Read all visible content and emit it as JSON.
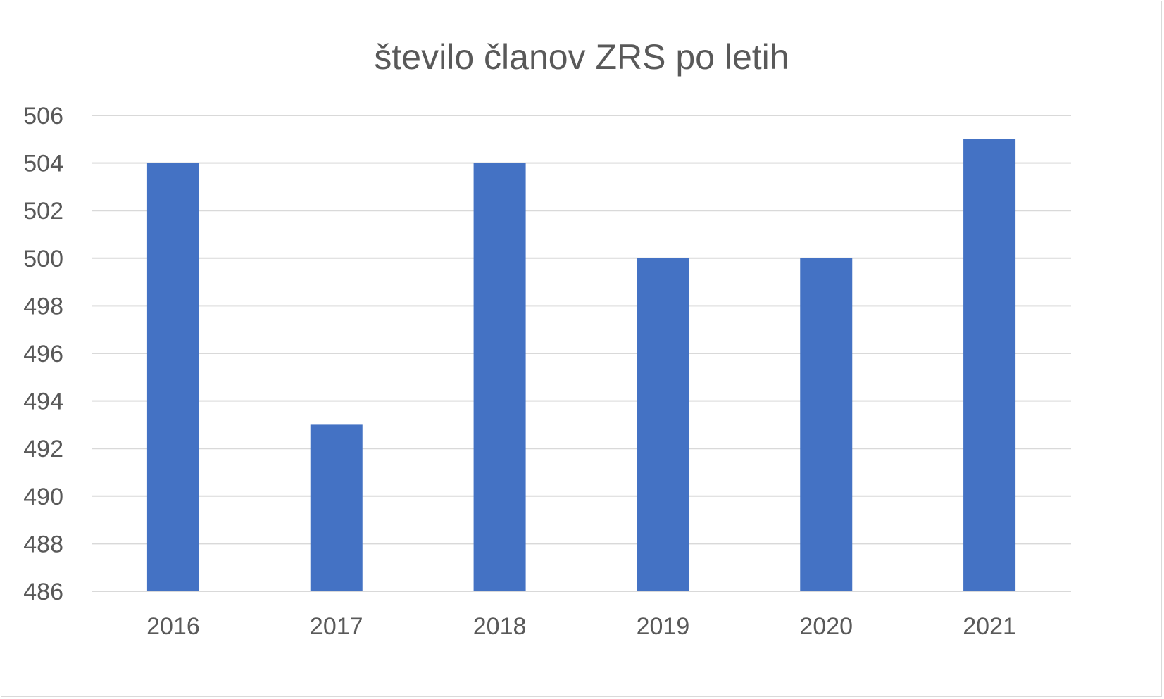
{
  "chart_data": {
    "type": "bar",
    "title": "število članov ZRS po letih",
    "xlabel": "",
    "ylabel": "",
    "categories": [
      "2016",
      "2017",
      "2018",
      "2019",
      "2020",
      "2021"
    ],
    "values": [
      504,
      493,
      504,
      500,
      500,
      505
    ],
    "ylim": [
      486,
      506
    ],
    "ytick_step": 2,
    "ytick_labels": [
      "486",
      "488",
      "490",
      "492",
      "494",
      "496",
      "498",
      "500",
      "502",
      "504",
      "506"
    ],
    "grid": true,
    "legend": "none",
    "bar_color": "#4472C4",
    "gridline_color": "#D9D9D9",
    "text_color": "#595959"
  }
}
